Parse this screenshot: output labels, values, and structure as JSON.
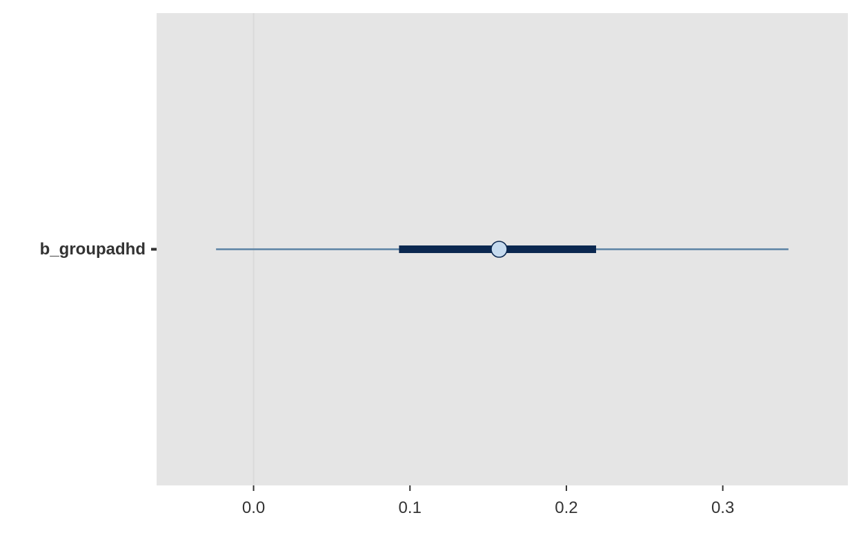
{
  "chart_data": {
    "type": "interval",
    "parameters": [
      "b_groupadhd"
    ],
    "estimates": [
      {
        "parameter": "b_groupadhd",
        "point": 0.157,
        "inner_interval": [
          0.093,
          0.219
        ],
        "outer_interval": [
          -0.024,
          0.342
        ]
      }
    ],
    "xlim": [
      -0.062,
      0.38
    ],
    "xticks": [
      0.0,
      0.1,
      0.2,
      0.3
    ],
    "xtick_labels": [
      "0.0",
      "0.1",
      "0.2",
      "0.3"
    ],
    "title": "",
    "xlabel": "",
    "ylabel": "",
    "vline_at": 0.0,
    "grid": false,
    "legend": "none"
  },
  "colors": {
    "panel_bg": "#e5e5e5",
    "outer_line": "#5b82a3",
    "inner_line": "#0b2850",
    "point_fill": "#c6dbef",
    "point_stroke": "#0b2850",
    "vline": "#dadada",
    "text": "#333333"
  }
}
